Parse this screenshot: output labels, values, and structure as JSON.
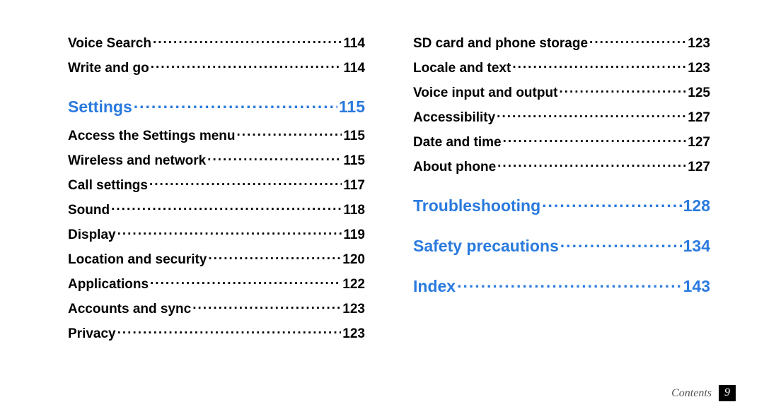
{
  "footer": {
    "label": "Contents",
    "page": "9"
  },
  "col1": [
    {
      "label": "Voice Search",
      "page": "114",
      "section": false
    },
    {
      "label": "Write and go",
      "page": "114",
      "section": false
    },
    {
      "label": "Settings",
      "page": "115",
      "section": true
    },
    {
      "label": "Access the Settings menu",
      "page": "115",
      "section": false
    },
    {
      "label": "Wireless and network",
      "page": "115",
      "section": false
    },
    {
      "label": "Call settings",
      "page": "117",
      "section": false
    },
    {
      "label": "Sound",
      "page": "118",
      "section": false
    },
    {
      "label": "Display",
      "page": "119",
      "section": false
    },
    {
      "label": "Location and security",
      "page": "120",
      "section": false
    },
    {
      "label": "Applications",
      "page": "122",
      "section": false
    },
    {
      "label": "Accounts and sync",
      "page": "123",
      "section": false
    },
    {
      "label": "Privacy",
      "page": "123",
      "section": false
    }
  ],
  "col2": [
    {
      "label": "SD card and phone storage",
      "page": "123",
      "section": false
    },
    {
      "label": "Locale and text",
      "page": "123",
      "section": false
    },
    {
      "label": "Voice input and output",
      "page": "125",
      "section": false
    },
    {
      "label": "Accessibility",
      "page": "127",
      "section": false
    },
    {
      "label": "Date and time",
      "page": "127",
      "section": false
    },
    {
      "label": "About phone",
      "page": "127",
      "section": false
    },
    {
      "label": "Troubleshooting",
      "page": "128",
      "section": true
    },
    {
      "label": "Safety precautions",
      "page": "134",
      "section": true
    },
    {
      "label": "Index",
      "page": "143",
      "section": true
    }
  ]
}
